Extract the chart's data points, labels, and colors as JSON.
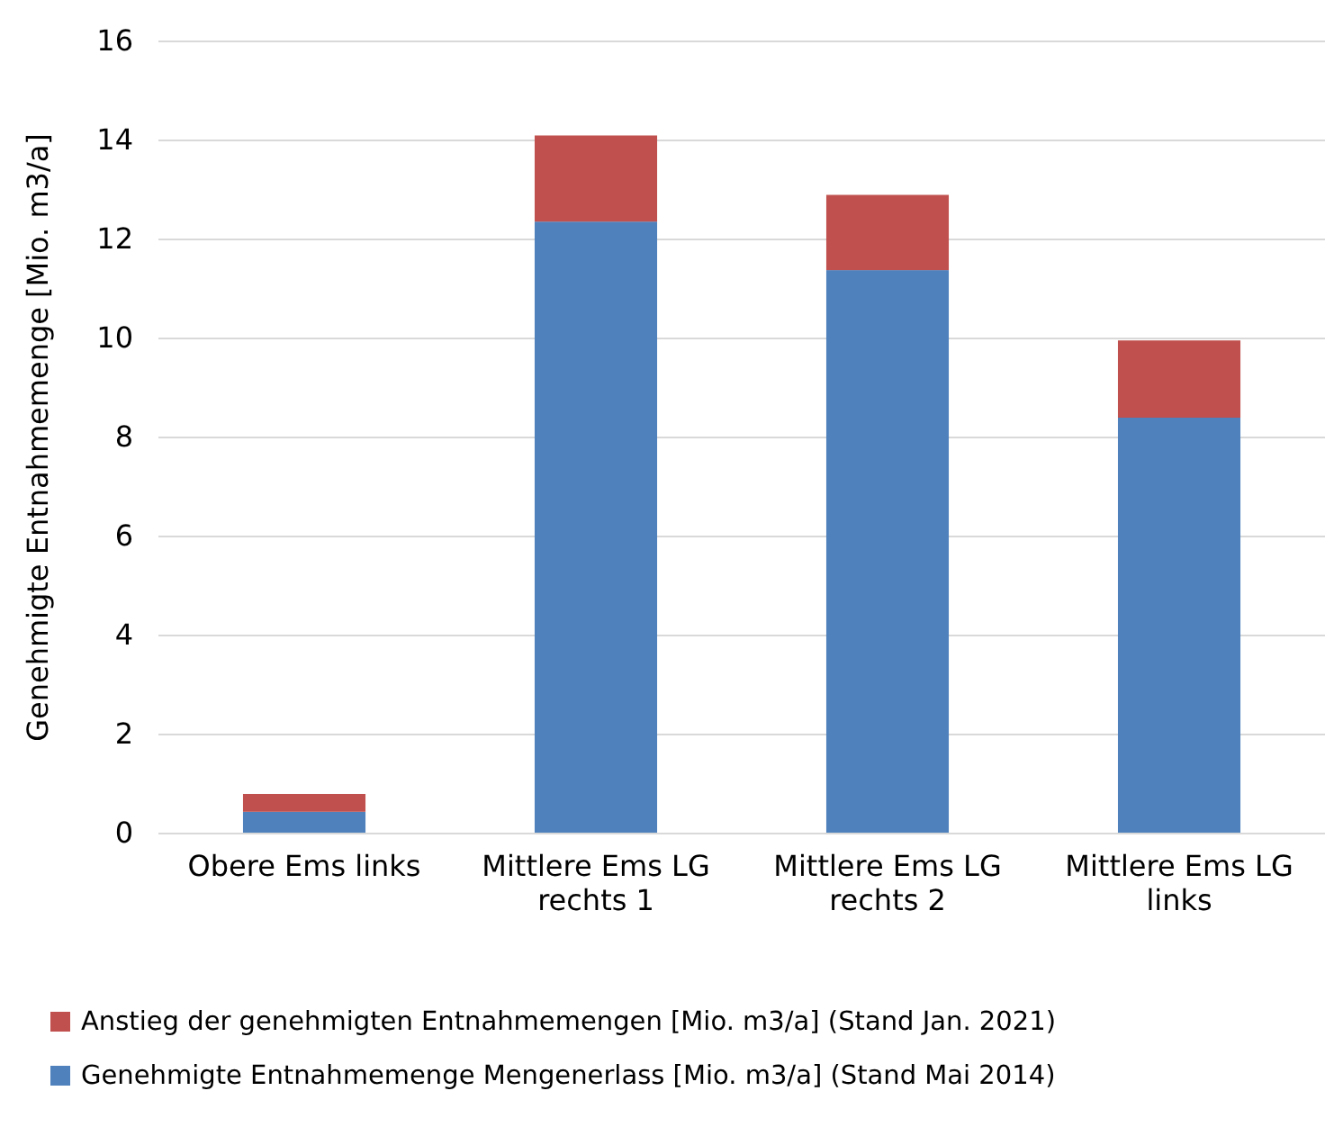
{
  "chart_data": {
    "type": "bar",
    "stacked": true,
    "ylabel": "Genehmigte Entnahmemenge [Mio. m3/a]",
    "categories": [
      "Obere Ems links",
      "Mittlere Ems LG rechts 1",
      "Mittlere Ems LG rechts 2",
      "Mittlere Ems LG links"
    ],
    "series": [
      {
        "name": "Genehmigte Entnahmemenge Mengenerlass [Mio. m3/a] (Stand Mai 2014)",
        "color": "#4f81bd",
        "values": [
          0.44,
          12.36,
          11.38,
          8.4
        ]
      },
      {
        "name": "Anstieg der genehmigten Entnahmemengen [Mio. m3/a] (Stand Jan. 2021)",
        "color": "#c0504d",
        "values": [
          0.36,
          1.74,
          1.52,
          1.56
        ]
      }
    ],
    "ylim": [
      0,
      16
    ],
    "yticks": [
      0,
      2,
      4,
      6,
      8,
      10,
      12,
      14,
      16
    ],
    "grid": "y",
    "legend": "bottom"
  }
}
